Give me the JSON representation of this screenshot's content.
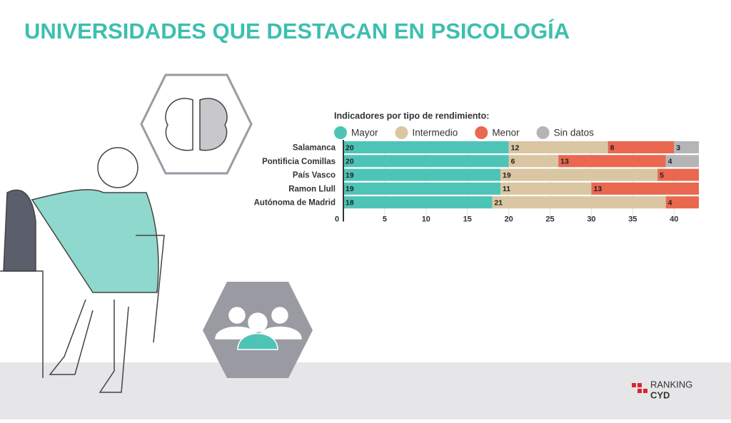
{
  "chart_data": {
    "type": "bar",
    "orientation": "horizontal",
    "stacked": true,
    "title": "UNIVERSIDADES QUE DESTACAN EN PSICOLOGÍA",
    "legend_title": "Indicadores por tipo de rendimiento:",
    "categories": [
      "Salamanca",
      "Pontificia Comillas",
      "País Vasco",
      "Ramon Llull",
      "Autónoma de Madrid"
    ],
    "series": [
      {
        "name": "Mayor",
        "color": "#4ec4b6",
        "values": [
          20,
          20,
          19,
          19,
          18
        ]
      },
      {
        "name": "Intermedio",
        "color": "#dac6a2",
        "values": [
          12,
          6,
          19,
          11,
          21
        ]
      },
      {
        "name": "Menor",
        "color": "#e9684f",
        "values": [
          8,
          13,
          5,
          13,
          4
        ]
      },
      {
        "name": "Sin datos",
        "color": "#b5b5b7",
        "values": [
          3,
          4,
          null,
          null,
          null
        ]
      }
    ],
    "xlim": [
      0,
      43
    ],
    "xticks": [
      0,
      5,
      10,
      15,
      20,
      25,
      30,
      35,
      40
    ],
    "grid": true,
    "legend": "top"
  },
  "logo": {
    "line1": "RANKING",
    "line2": "CYD"
  }
}
